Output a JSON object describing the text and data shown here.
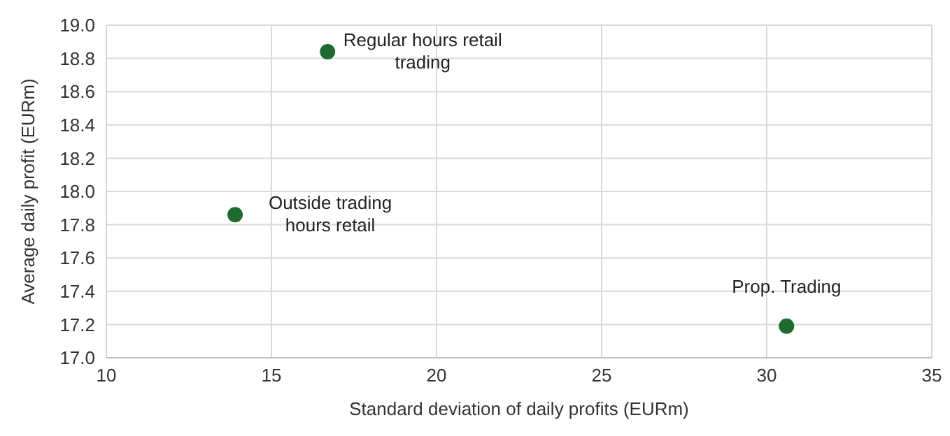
{
  "chart_data": {
    "type": "scatter",
    "xlabel": "Standard deviation of daily profits (EURm)",
    "ylabel": "Average daily profit (EURm)",
    "x": [
      16.7,
      13.9,
      30.6
    ],
    "series": [
      {
        "color": "#1e6b30",
        "values": [
          18.84,
          17.86,
          17.19
        ]
      }
    ],
    "xlim": [
      10,
      35
    ],
    "xticks": [
      10,
      15,
      20,
      25,
      30,
      35
    ],
    "ylim": [
      17.0,
      19.0
    ],
    "yticks": [
      {
        "value": 17.0,
        "label": "17.0"
      },
      {
        "value": 17.2,
        "label": "17.2"
      },
      {
        "value": 17.4,
        "label": "17.4"
      },
      {
        "value": 17.6,
        "label": "17.6"
      },
      {
        "value": 17.8,
        "label": "17.8"
      },
      {
        "value": 18.0,
        "label": "18.0"
      },
      {
        "value": 18.2,
        "label": "18.2"
      },
      {
        "value": 18.4,
        "label": "18.4"
      },
      {
        "value": 18.6,
        "label": "18.6"
      },
      {
        "value": 18.8,
        "label": "18.8"
      },
      {
        "value": 19.0,
        "label": "19.0"
      }
    ],
    "grid": true,
    "marker": "circle",
    "annotations": [
      {
        "text": "Regular hours retail trading",
        "x": 16.7,
        "y": 18.84
      },
      {
        "text": "Outside trading hours retail",
        "x": 13.9,
        "y": 17.86
      },
      {
        "text": "Prop. Trading",
        "x": 30.6,
        "y": 17.19
      }
    ]
  }
}
